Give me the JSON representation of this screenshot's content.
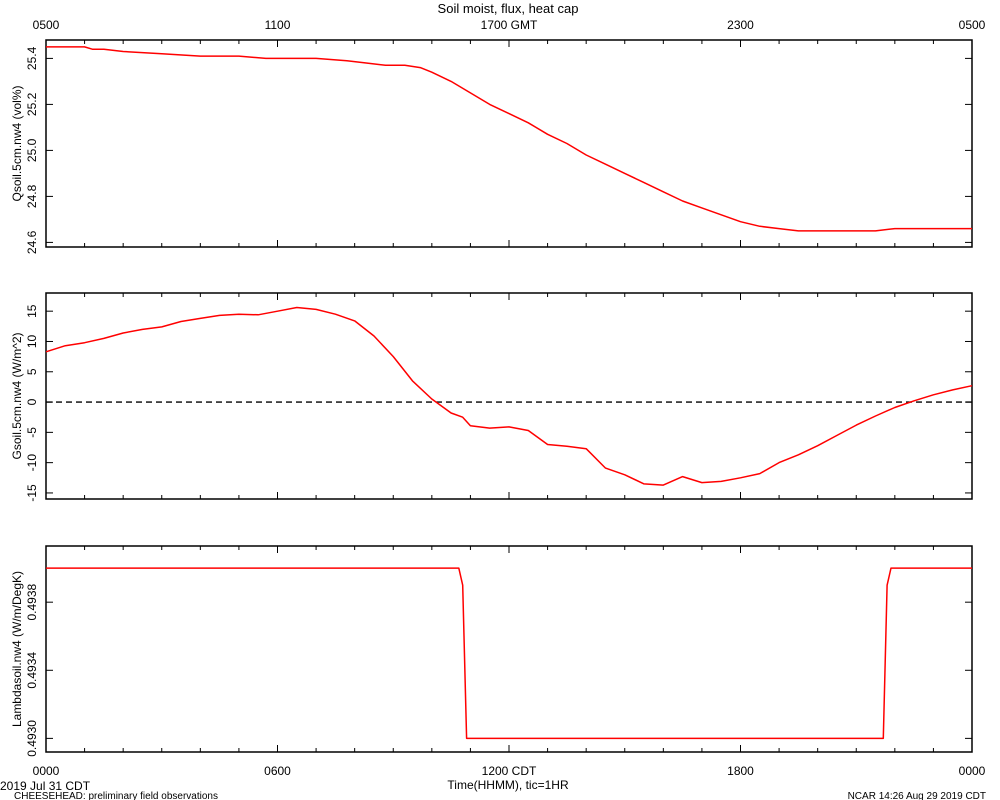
{
  "figure": {
    "title": "Soil moist, flux, heat cap",
    "footer_left_date": "2019 Jul 31 CDT",
    "footer_left_note": "CHEESEHEAD: preliminary field observations",
    "footer_right_note": "NCAR 14:26 Aug 29 2019 CDT",
    "x_axis_title": "Time(HHMM), tic=1HR",
    "top_ticks": [
      "0500",
      "1100",
      "1700 GMT",
      "2300",
      "0500"
    ],
    "bottom_ticks": [
      "0000",
      "0600",
      "1200 CDT",
      "1800",
      "0000"
    ],
    "x_range_hours": [
      0,
      24
    ],
    "line_color": "#ff0000"
  },
  "chart_data": [
    {
      "type": "line",
      "ylabel": "Qsoil.5cm.nw4 (vol%)",
      "ylim": [
        24.58,
        25.48
      ],
      "yticks": [
        24.6,
        24.8,
        25.0,
        25.2,
        25.4
      ],
      "ytick_labels": [
        "24.6",
        "24.8",
        "25.0",
        "25.2",
        "25.4"
      ],
      "zero_line": false,
      "x": [
        0,
        1,
        1.2,
        1.5,
        2,
        3,
        4,
        5,
        5.7,
        6,
        7,
        7.8,
        8.3,
        8.8,
        9.3,
        9.7,
        10,
        10.5,
        11,
        11.5,
        12,
        12.5,
        13,
        13.5,
        14,
        14.5,
        15,
        15.5,
        16,
        16.5,
        17,
        17.5,
        18,
        18.5,
        19,
        19.5,
        20,
        20.5,
        21,
        21.5,
        22,
        22.5,
        23,
        23.5,
        24
      ],
      "values": [
        25.45,
        25.45,
        25.44,
        25.44,
        25.43,
        25.42,
        25.41,
        25.41,
        25.4,
        25.4,
        25.4,
        25.39,
        25.38,
        25.37,
        25.37,
        25.36,
        25.34,
        25.3,
        25.25,
        25.2,
        25.16,
        25.12,
        25.07,
        25.03,
        24.98,
        24.94,
        24.9,
        24.86,
        24.82,
        24.78,
        24.75,
        24.72,
        24.69,
        24.67,
        24.66,
        24.65,
        24.65,
        24.65,
        24.65,
        24.65,
        24.66,
        24.66,
        24.66,
        24.66,
        24.66
      ]
    },
    {
      "type": "line",
      "ylabel": "Gsoil.5cm.nw4 (W/m^2)",
      "ylim": [
        -16,
        18
      ],
      "yticks": [
        -15,
        -10,
        -5,
        0,
        5,
        10,
        15
      ],
      "ytick_labels": [
        "-15",
        "-10",
        "-5",
        "0",
        "5",
        "10",
        "15"
      ],
      "zero_line": true,
      "x": [
        0,
        0.5,
        1,
        1.5,
        2,
        2.5,
        3,
        3.5,
        4,
        4.5,
        5,
        5.5,
        6,
        6.5,
        7,
        7.5,
        8,
        8.5,
        9,
        9.5,
        10,
        10.5,
        10.8,
        11,
        11.5,
        12,
        12.5,
        13,
        13.5,
        14,
        14.5,
        15,
        15.5,
        16,
        16.5,
        17,
        17.5,
        18,
        18.5,
        19,
        19.5,
        20,
        20.5,
        21,
        21.5,
        22,
        22.5,
        23,
        23.5,
        24
      ],
      "values": [
        8.3,
        9.3,
        9.8,
        10.5,
        11.4,
        12.0,
        12.4,
        13.3,
        13.8,
        14.3,
        14.5,
        14.4,
        15.0,
        15.6,
        15.3,
        14.5,
        13.4,
        10.9,
        7.5,
        3.5,
        0.5,
        -1.8,
        -2.5,
        -3.9,
        -4.3,
        -4.1,
        -4.7,
        -7.0,
        -7.3,
        -7.7,
        -10.9,
        -12.0,
        -13.5,
        -13.7,
        -12.3,
        -13.3,
        -13.1,
        -12.5,
        -11.8,
        -10.0,
        -8.7,
        -7.2,
        -5.5,
        -3.8,
        -2.3,
        -0.9,
        0.2,
        1.2,
        2.0,
        2.7
      ]
    },
    {
      "type": "line",
      "ylabel": "Lambdasoil.nw4 (W/m/DegK)",
      "ylim": [
        0.49292,
        0.49413
      ],
      "yticks": [
        0.493,
        0.4934,
        0.4938
      ],
      "ytick_labels": [
        "0.4930",
        "0.4934",
        "0.4938"
      ],
      "zero_line": false,
      "x": [
        0,
        10.7,
        10.8,
        10.9,
        21.7,
        21.8,
        21.9,
        24
      ],
      "values": [
        0.494,
        0.494,
        0.4939,
        0.493,
        0.493,
        0.4939,
        0.494,
        0.494
      ]
    }
  ]
}
